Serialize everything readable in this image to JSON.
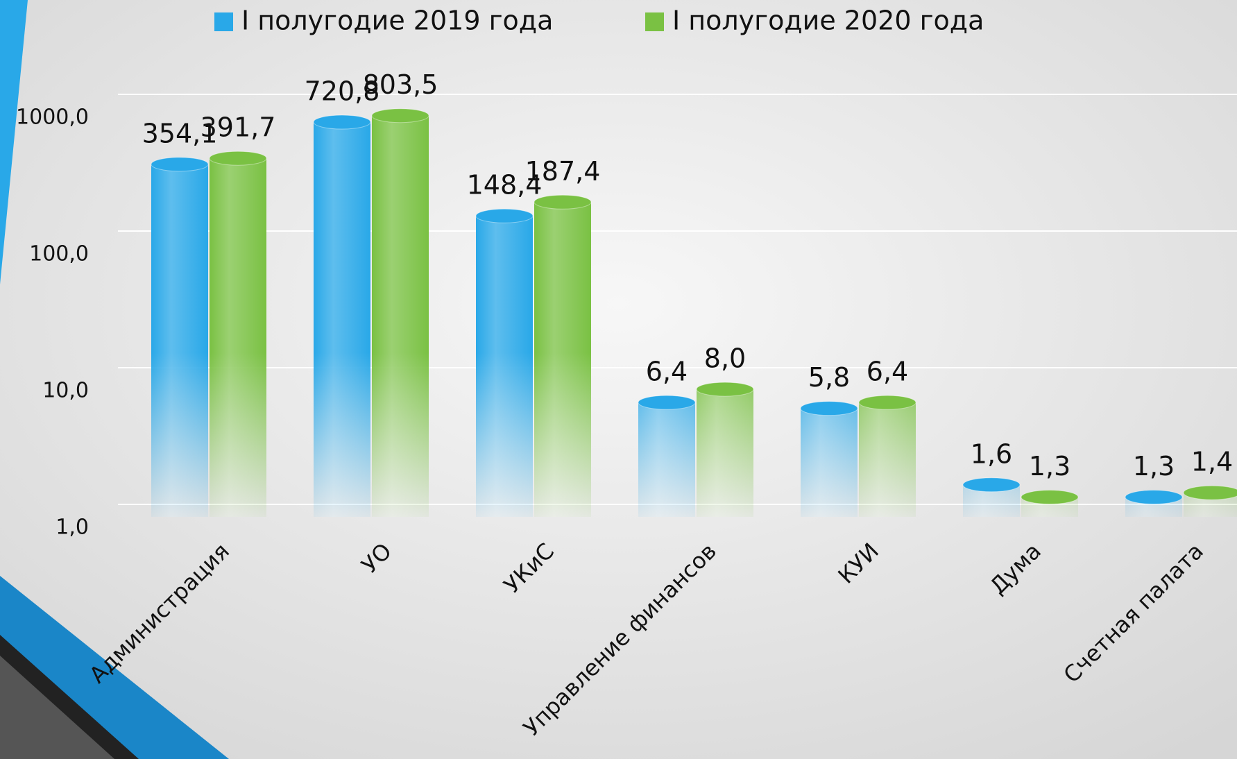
{
  "chart_data": {
    "type": "bar",
    "categories": [
      "Администрация",
      "УО",
      "УКиС",
      "Управление финансов",
      "КУИ",
      "Дума",
      "Счетная палата"
    ],
    "series": [
      {
        "name": "I полугодие 2019 года",
        "color": "#29a8e8",
        "values": [
          354.1,
          720.8,
          148.4,
          6.4,
          5.8,
          1.6,
          1.3
        ],
        "value_labels": [
          "354,1",
          "720,8",
          "148,4",
          "6,4",
          "5,8",
          "1,6",
          "1,3"
        ]
      },
      {
        "name": "I полугодие 2020 года",
        "color": "#7ac143",
        "values": [
          391.7,
          803.5,
          187.4,
          8.0,
          6.4,
          1.3,
          1.4
        ],
        "value_labels": [
          "391,7",
          "803,5",
          "187,4",
          "8,0",
          "6,4",
          "1,3",
          "1,4"
        ]
      }
    ],
    "ylim": [
      1,
      1000
    ],
    "yticks": [
      {
        "value": 1,
        "label": "1,0"
      },
      {
        "value": 10,
        "label": "10,0"
      },
      {
        "value": 100,
        "label": "100,0"
      },
      {
        "value": 1000,
        "label": "1000,0"
      }
    ],
    "log_scale": true,
    "grid": true,
    "legend": "top"
  }
}
